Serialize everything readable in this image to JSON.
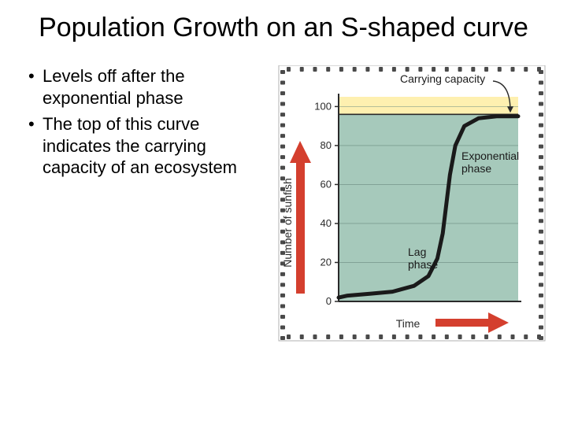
{
  "title": "Population Growth on an S-shaped curve",
  "bullets": [
    "Levels off after the exponential phase",
    "The top of this curve indicates the carrying capacity of an ecosystem"
  ],
  "chart": {
    "type": "line",
    "y_label": "Number of sunfish",
    "x_label": "Time",
    "annotations": {
      "carrying": "Carrying capacity",
      "exponential": "Exponential\nphase",
      "lag": "Lag\nphase"
    },
    "ylim": [
      0,
      105
    ],
    "ytick_step": 20,
    "yticks": [
      0,
      20,
      40,
      60,
      80,
      100
    ],
    "carrying_capacity": 96,
    "curve_points": [
      [
        0,
        2
      ],
      [
        5,
        3
      ],
      [
        18,
        4
      ],
      [
        30,
        5
      ],
      [
        42,
        8
      ],
      [
        50,
        13
      ],
      [
        55,
        22
      ],
      [
        58,
        35
      ],
      [
        60,
        50
      ],
      [
        62,
        65
      ],
      [
        65,
        80
      ],
      [
        70,
        90
      ],
      [
        78,
        94
      ],
      [
        88,
        95
      ],
      [
        100,
        95
      ]
    ],
    "plot_bg": "#a6c9bb",
    "plot_bg_top": "#fef0b0",
    "axis_color": "#2a2a2a",
    "grid_color": "#6b8b80",
    "curve_color": "#1a1a1a",
    "curve_width": 5,
    "arrow_fill": "#d43f2e",
    "label_font": 14,
    "tick_font": 13,
    "anno_font": 14,
    "anno_color": "#1a1a1a",
    "outer_border": "#b0b0b0",
    "sprocket_color": "#4a4a4a"
  }
}
